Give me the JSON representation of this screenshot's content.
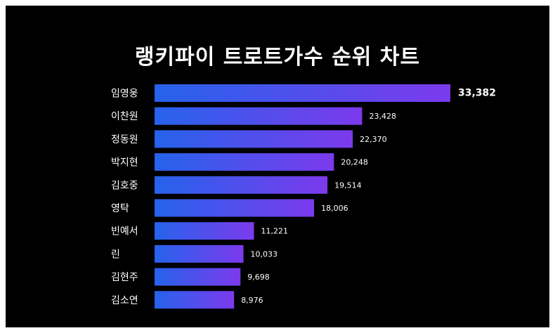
{
  "chart_data": {
    "type": "bar",
    "orientation": "horizontal",
    "title": "랭키파이 트로트가수 순위 차트",
    "categories": [
      "임영웅",
      "이찬원",
      "정동원",
      "박지현",
      "김호중",
      "영탁",
      "빈예서",
      "린",
      "김현주",
      "김소연"
    ],
    "values": [
      33382,
      23428,
      22370,
      20248,
      19514,
      18006,
      11221,
      10033,
      9698,
      8976
    ],
    "value_labels": [
      "33,382",
      "23,428",
      "22,370",
      "20,248",
      "19,514",
      "18,006",
      "11,221",
      "10,033",
      "9,698",
      "8,976"
    ],
    "xlim": [
      0,
      33382
    ],
    "grid": false,
    "legend": "none",
    "colors": {
      "background": "#000000",
      "bar_gradient_start": "#2563eb",
      "bar_gradient_end": "#7c3aed",
      "text": "#ffffff"
    }
  }
}
